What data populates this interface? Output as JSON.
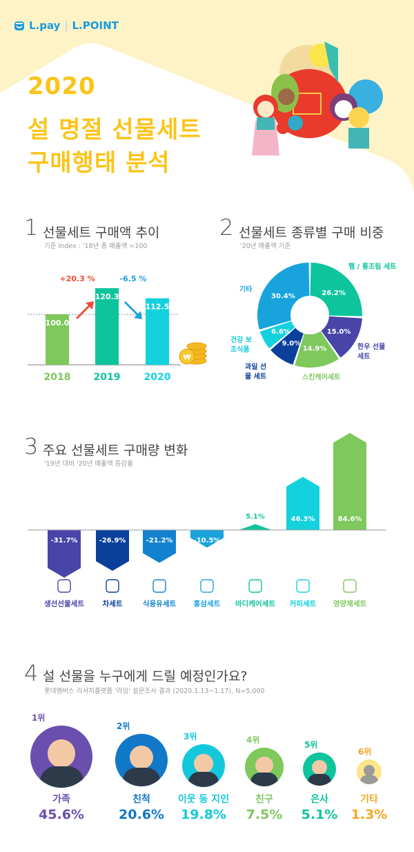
{
  "header": {
    "logo_lpay": "L.pay",
    "logo_sep": "|",
    "logo_lpoint": "L.POINT",
    "title_year": "2020",
    "title_line1": "설 명절 선물세트",
    "title_line2": "구매행태 분석",
    "bg_color": "#fdf3c6",
    "title_color": "#fcc419"
  },
  "chart_data": [
    {
      "id": "section1",
      "type": "bar",
      "number": "1",
      "title": "선물세트 구매액 추이",
      "subtitle": "기준 Index : '18년 총 매출액 =100",
      "categories": [
        "2018",
        "2019",
        "2020"
      ],
      "values": [
        100.0,
        120.3,
        112.5
      ],
      "value_labels": [
        "100.0",
        "120.3",
        "112.5"
      ],
      "colors": [
        "#7ec85c",
        "#0ec49d",
        "#14d1de"
      ],
      "changes": [
        {
          "label": "+20.3 %",
          "direction": "up",
          "color": "#f04a35"
        },
        {
          "label": "-6.5 %",
          "direction": "down",
          "color": "#19a3dc"
        }
      ],
      "reference_line": 100
    },
    {
      "id": "section2",
      "type": "pie",
      "number": "2",
      "title": "선물세트 종류별 구매 비중",
      "subtitle": "'20년 매출액 기준",
      "donut": true,
      "slices": [
        {
          "label": "햄 / 통조림 세트",
          "value": 26.2,
          "value_label": "26.2%",
          "color": "#0ec49d"
        },
        {
          "label": "한우 선물 세트",
          "value": 15.0,
          "value_label": "15.0%",
          "color": "#4844a8"
        },
        {
          "label": "스킨케어세트",
          "value": 14.9,
          "value_label": "14.9%",
          "color": "#7ec85c"
        },
        {
          "label": "과일 선물 세트",
          "value": 9.0,
          "value_label": "9.0%",
          "color": "#0a409b"
        },
        {
          "label": "건강 보조식품",
          "value": 6.6,
          "value_label": "6.6%",
          "color": "#14d1de"
        },
        {
          "label": "기타",
          "value": 30.4,
          "value_label": "30.4%",
          "color": "#19a3dc"
        }
      ]
    },
    {
      "id": "section3",
      "type": "bar",
      "number": "3",
      "title": "주요 선물세트 구매량 변화",
      "subtitle": "'19년 대비 '20년 매출액 증감율",
      "categories": [
        "생선선물세트",
        "차세트",
        "식용유세트",
        "홍삼세트",
        "바디케어세트",
        "커피세트",
        "영양제세트"
      ],
      "values": [
        -31.7,
        -26.9,
        -21.2,
        -10.5,
        5.1,
        46.3,
        84.6
      ],
      "value_labels": [
        "-31.7%",
        "-26.9%",
        "-21.2%",
        "-10.5%",
        "5.1%",
        "46.3%",
        "84.6%"
      ],
      "colors": [
        "#4844a8",
        "#0a409b",
        "#1282d0",
        "#19a3dc",
        "#0ec49d",
        "#14d1de",
        "#7ec85c"
      ],
      "icons": [
        "fish-icon",
        "tea-bag-icon",
        "oil-bottle-icon",
        "ginseng-icon",
        "pump-bottle-icon",
        "coffee-bean-icon",
        "supplement-pill-icon"
      ]
    },
    {
      "id": "section4",
      "type": "bar",
      "number": "4",
      "title": "설 선물을 누구에게 드릴 예정인가요?",
      "subtitle": "롯데멤버스 리서치플랫폼 '라임' 설문조사 결과 (2020.1.13~1.17), N=5,000",
      "items": [
        {
          "rank": "1위",
          "label": "가족",
          "value": 45.6,
          "value_label": "45.6%",
          "color": "#6a4fae"
        },
        {
          "rank": "2위",
          "label": "친척",
          "value": 20.6,
          "value_label": "20.6%",
          "color": "#1278c8"
        },
        {
          "rank": "3위",
          "label": "이웃 등 지인",
          "value": 19.8,
          "value_label": "19.8%",
          "color": "#14c8dc"
        },
        {
          "rank": "4위",
          "label": "친구",
          "value": 7.5,
          "value_label": "7.5%",
          "color": "#7ec85c"
        },
        {
          "rank": "5위",
          "label": "은사",
          "value": 5.1,
          "value_label": "5.1%",
          "color": "#0ec49d"
        },
        {
          "rank": "6위",
          "label": "기타",
          "value": 1.3,
          "value_label": "1.3%",
          "color": "#f5a623"
        }
      ]
    }
  ]
}
